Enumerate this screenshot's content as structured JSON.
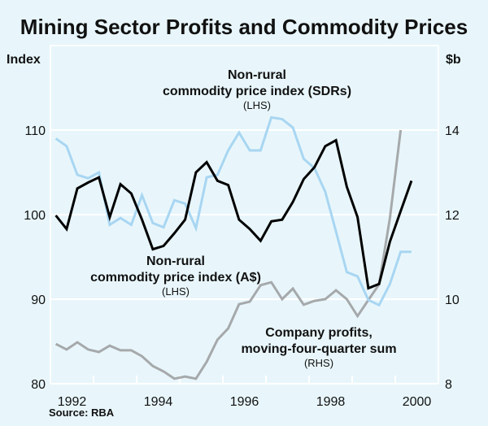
{
  "chart_data": {
    "type": "line",
    "title": "Mining Sector Profits and Commodity Prices",
    "left_axis": {
      "unit_label": "Index",
      "ticks": [
        80,
        90,
        100,
        110
      ],
      "ylim": [
        80,
        120
      ]
    },
    "right_axis": {
      "unit_label": "$b",
      "ticks": [
        8,
        10,
        12,
        14
      ],
      "ylim": [
        8,
        16
      ]
    },
    "x_ticks": [
      "1992",
      "1994",
      "1996",
      "1998",
      "2000"
    ],
    "xlim": [
      1992,
      2001
    ],
    "grid": true,
    "source": "Source: RBA",
    "series": [
      {
        "name": "Non-rural commodity price index (A$)",
        "label_lines": [
          "Non-rural",
          "commodity price index (A$)",
          "(LHS)"
        ],
        "axis": "left",
        "color": "#000000",
        "start": 1992.125,
        "step": 0.25,
        "values": [
          99.9,
          98.3,
          103.1,
          103.8,
          104.4,
          99.7,
          103.6,
          102.5,
          99.4,
          95.9,
          96.3,
          97.8,
          99.4,
          105.0,
          106.2,
          104.0,
          103.5,
          99.4,
          98.3,
          96.9,
          99.2,
          99.4,
          101.5,
          104.2,
          105.6,
          108.1,
          108.8,
          103.3,
          99.7,
          91.3,
          91.8,
          96.8,
          100.4,
          104.0
        ]
      },
      {
        "name": "Non-rural commodity price index (SDRs)",
        "label_lines": [
          "Non-rural",
          "commodity price index (SDRs)",
          "(LHS)"
        ],
        "axis": "left",
        "color": "#a8d6f2",
        "start": 1992.125,
        "step": 0.25,
        "values": [
          109.0,
          108.1,
          104.7,
          104.3,
          105.0,
          98.8,
          99.6,
          98.8,
          102.3,
          99.0,
          98.5,
          101.7,
          101.3,
          98.4,
          104.4,
          104.7,
          107.6,
          109.7,
          107.6,
          107.6,
          111.5,
          111.3,
          110.3,
          106.6,
          105.5,
          102.7,
          98.0,
          93.2,
          92.7,
          89.9,
          89.3,
          91.8,
          95.6,
          95.6
        ]
      },
      {
        "name": "Company profits, moving-four-quarter sum",
        "label_lines": [
          "Company profits,",
          "moving-four-quarter sum",
          "(RHS)"
        ],
        "axis": "right",
        "color": "#a6a9ab",
        "start": 1992.125,
        "step": 0.25,
        "values": [
          8.94,
          8.81,
          8.98,
          8.81,
          8.75,
          8.9,
          8.79,
          8.79,
          8.65,
          8.42,
          8.29,
          8.12,
          8.17,
          8.12,
          8.52,
          9.04,
          9.31,
          9.88,
          9.94,
          10.33,
          10.4,
          10.0,
          10.25,
          9.87,
          9.96,
          10.0,
          10.21,
          10.0,
          9.6,
          9.98,
          10.35,
          11.92,
          14.0
        ]
      }
    ]
  }
}
